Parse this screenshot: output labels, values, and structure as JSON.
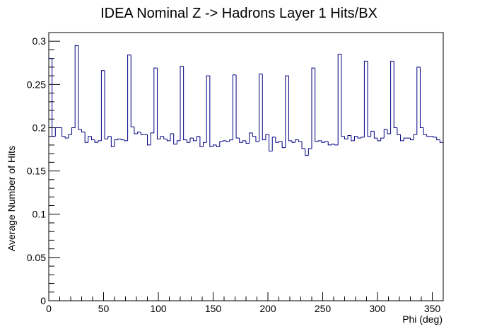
{
  "chart_data": {
    "type": "histogram",
    "title": "IDEA Nominal Z -> Hadrons Layer 1 Hits/BX",
    "xlabel": "Phi (deg)",
    "ylabel": "Average Number of Hits",
    "xlim": [
      0,
      360
    ],
    "ylim": [
      0,
      0.31
    ],
    "x_ticks": [
      0,
      50,
      100,
      150,
      200,
      250,
      300,
      350
    ],
    "x_tick_labels": [
      "0",
      "50",
      "100",
      "150",
      "200",
      "250",
      "300",
      "350"
    ],
    "y_ticks": [
      0,
      0.05,
      0.1,
      0.15,
      0.2,
      0.25,
      0.3
    ],
    "y_tick_labels": [
      "0",
      "0.05",
      "0.1",
      "0.15",
      "0.2",
      "0.25",
      "0.3"
    ],
    "bin_width": 3,
    "values": [
      0.28,
      0.19,
      0.2,
      0.2,
      0.19,
      0.188,
      0.192,
      0.2,
      0.295,
      0.198,
      0.195,
      0.183,
      0.19,
      0.186,
      0.183,
      0.185,
      0.266,
      0.187,
      0.19,
      0.178,
      0.186,
      0.187,
      0.186,
      0.185,
      0.284,
      0.201,
      0.193,
      0.195,
      0.192,
      0.192,
      0.18,
      0.194,
      0.269,
      0.187,
      0.19,
      0.187,
      0.185,
      0.193,
      0.181,
      0.185,
      0.271,
      0.186,
      0.183,
      0.188,
      0.185,
      0.19,
      0.178,
      0.183,
      0.26,
      0.178,
      0.18,
      0.178,
      0.184,
      0.185,
      0.184,
      0.186,
      0.261,
      0.188,
      0.183,
      0.185,
      0.182,
      0.194,
      0.19,
      0.184,
      0.262,
      0.186,
      0.192,
      0.173,
      0.189,
      0.183,
      0.184,
      0.177,
      0.26,
      0.185,
      0.183,
      0.186,
      0.184,
      0.176,
      0.168,
      0.176,
      0.269,
      0.184,
      0.185,
      0.183,
      0.184,
      0.18,
      0.181,
      0.18,
      0.285,
      0.19,
      0.187,
      0.191,
      0.185,
      0.19,
      0.188,
      0.189,
      0.277,
      0.19,
      0.196,
      0.188,
      0.185,
      0.188,
      0.198,
      0.193,
      0.277,
      0.2,
      0.192,
      0.185,
      0.188,
      0.188,
      0.186,
      0.192,
      0.27,
      0.2,
      0.192,
      0.19,
      0.19,
      0.189,
      0.186,
      0.183
    ],
    "line_color": "#000080",
    "grid": false,
    "legend": false
  }
}
